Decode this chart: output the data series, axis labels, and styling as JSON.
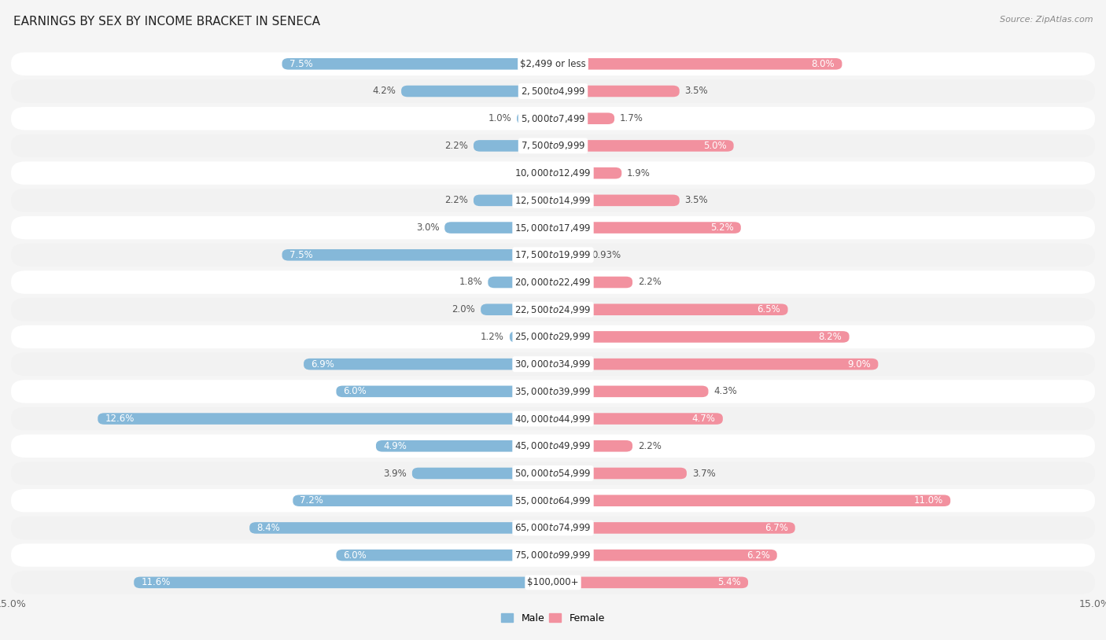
{
  "title": "EARNINGS BY SEX BY INCOME BRACKET IN SENECA",
  "source": "Source: ZipAtlas.com",
  "categories": [
    "$2,499 or less",
    "$2,500 to $4,999",
    "$5,000 to $7,499",
    "$7,500 to $9,999",
    "$10,000 to $12,499",
    "$12,500 to $14,999",
    "$15,000 to $17,499",
    "$17,500 to $19,999",
    "$20,000 to $22,499",
    "$22,500 to $24,999",
    "$25,000 to $29,999",
    "$30,000 to $34,999",
    "$35,000 to $39,999",
    "$40,000 to $44,999",
    "$45,000 to $49,999",
    "$50,000 to $54,999",
    "$55,000 to $64,999",
    "$65,000 to $74,999",
    "$75,000 to $99,999",
    "$100,000+"
  ],
  "male": [
    7.5,
    4.2,
    1.0,
    2.2,
    0.0,
    2.2,
    3.0,
    7.5,
    1.8,
    2.0,
    1.2,
    6.9,
    6.0,
    12.6,
    4.9,
    3.9,
    7.2,
    8.4,
    6.0,
    11.6
  ],
  "female": [
    8.0,
    3.5,
    1.7,
    5.0,
    1.9,
    3.5,
    5.2,
    0.93,
    2.2,
    6.5,
    8.2,
    9.0,
    4.3,
    4.7,
    2.2,
    3.7,
    11.0,
    6.7,
    6.2,
    5.4
  ],
  "male_color": "#85B8D9",
  "female_color": "#F2919F",
  "axis_max": 15.0,
  "title_fontsize": 11,
  "label_fontsize": 8.5,
  "category_fontsize": 8.5,
  "row_colors": [
    "#f2f2f2",
    "#ffffff"
  ],
  "bg_color": "#f5f5f5"
}
